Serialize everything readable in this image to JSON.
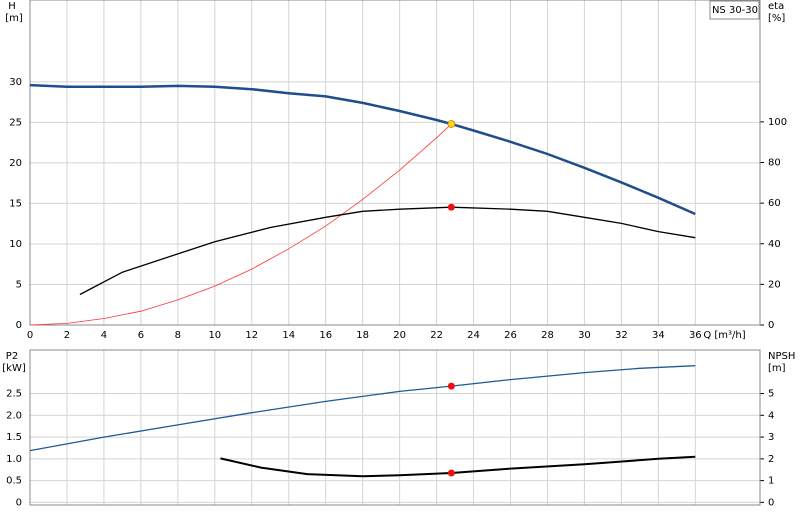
{
  "chart_data": [
    {
      "type": "line",
      "label": "NS 30-30",
      "x_label": "Q [m³/h]",
      "y_label": "H",
      "y_unit": "[m]",
      "y2_label": "eta",
      "y2_unit": "[%]",
      "xlim": [
        0,
        39.5
      ],
      "xticks": [
        0,
        2,
        4,
        6,
        8,
        10,
        12,
        14,
        16,
        18,
        20,
        22,
        24,
        26,
        28,
        30,
        32,
        34,
        36
      ],
      "ylim": [
        0,
        40.1
      ],
      "yticks": [
        0,
        5,
        10,
        15,
        20,
        25,
        30
      ],
      "y2lim": [
        0,
        160
      ],
      "y2ticks": [
        0,
        20,
        40,
        60,
        80,
        100
      ],
      "grid": true,
      "series": [
        {
          "color": "#1f4e8c",
          "width": 2.5,
          "x": [
            0,
            2,
            4,
            6,
            8,
            10,
            12,
            14,
            16,
            18,
            20,
            22,
            22.8,
            24,
            26,
            28,
            30,
            32,
            34,
            36
          ],
          "values": [
            29.6,
            29.4,
            29.4,
            29.4,
            29.5,
            29.4,
            29.1,
            28.6,
            28.2,
            27.4,
            26.4,
            25.3,
            24.8,
            24.0,
            22.6,
            21.1,
            19.4,
            17.6,
            15.7,
            13.7
          ]
        },
        {
          "color": "#ff3333",
          "width": 0.8,
          "x": [
            0,
            2,
            4,
            6,
            8,
            10,
            12,
            14,
            16,
            18,
            20,
            22,
            22.8
          ],
          "values": [
            0,
            0.2,
            0.8,
            1.7,
            3.1,
            4.8,
            6.9,
            9.4,
            12.2,
            15.5,
            19.1,
            23.1,
            24.8
          ]
        },
        {
          "color": "#000000",
          "width": 1.3,
          "axis": "y2",
          "x": [
            2.7,
            5,
            8,
            10,
            13,
            16,
            18,
            20,
            22.8,
            26,
            28,
            30,
            32,
            34,
            36
          ],
          "values": [
            15,
            26,
            35,
            41,
            48,
            53,
            56,
            57,
            58,
            57,
            56,
            53,
            50,
            46,
            43
          ]
        }
      ],
      "points": [
        {
          "x": 22.8,
          "y": 24.8,
          "color": "#ffd21f"
        },
        {
          "x": 22.8,
          "y": 58,
          "color": "#ee1111",
          "axis": "y2"
        }
      ]
    },
    {
      "type": "line",
      "y_label": "P2",
      "y_unit": "[kW]",
      "y2_label": "NPSH",
      "y2_unit": "[m]",
      "xlim": [
        0,
        39.5
      ],
      "xticks": [
        0,
        2,
        4,
        6,
        8,
        10,
        12,
        14,
        16,
        18,
        20,
        22,
        24,
        26,
        28,
        30,
        32,
        34,
        36
      ],
      "ylim": [
        -0.06,
        3.5
      ],
      "yticks": [
        0,
        0.5,
        {
          "value": 1,
          "label": "1.0"
        },
        1.5,
        {
          "value": 2,
          "label": "2.0"
        },
        2.5
      ],
      "y2lim": [
        -0.12,
        7
      ],
      "y2ticks": [
        0,
        1,
        2,
        3,
        4,
        5
      ],
      "grid": true,
      "series": [
        {
          "color": "#1f5a99",
          "width": 1.3,
          "x": [
            0,
            4,
            8,
            12,
            16,
            20,
            22.8,
            26,
            30,
            33,
            36
          ],
          "values": [
            1.19,
            1.5,
            1.78,
            2.06,
            2.32,
            2.55,
            2.67,
            2.82,
            2.98,
            3.08,
            3.14
          ]
        },
        {
          "color": "#000000",
          "width": 2,
          "axis": "y2",
          "x": [
            10.3,
            12.5,
            15,
            18,
            20,
            22.8,
            26,
            30,
            34,
            36
          ],
          "values": [
            2.02,
            1.6,
            1.3,
            1.2,
            1.25,
            1.35,
            1.55,
            1.75,
            2.0,
            2.1
          ]
        }
      ],
      "points": [
        {
          "x": 22.8,
          "y": 2.67,
          "color": "#ee1111"
        },
        {
          "x": 22.8,
          "y": 1.35,
          "color": "#ee1111",
          "axis": "y2"
        }
      ]
    }
  ]
}
